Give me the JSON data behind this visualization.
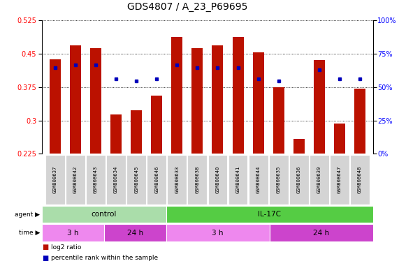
{
  "title": "GDS4807 / A_23_P69695",
  "samples": [
    "GSM808637",
    "GSM808642",
    "GSM808643",
    "GSM808634",
    "GSM808645",
    "GSM808646",
    "GSM808633",
    "GSM808638",
    "GSM808640",
    "GSM808641",
    "GSM808644",
    "GSM808635",
    "GSM808636",
    "GSM808639",
    "GSM808647",
    "GSM808648"
  ],
  "log2_ratio": [
    0.437,
    0.468,
    0.462,
    0.313,
    0.323,
    0.355,
    0.487,
    0.462,
    0.468,
    0.487,
    0.452,
    0.375,
    0.258,
    0.435,
    0.293,
    0.372
  ],
  "percentile": [
    0.418,
    0.425,
    0.425,
    0.393,
    0.388,
    0.393,
    0.425,
    0.418,
    0.418,
    0.418,
    0.393,
    0.388,
    null,
    0.414,
    0.393,
    0.393
  ],
  "ylim_left": [
    0.225,
    0.525
  ],
  "yticks_left": [
    0.225,
    0.3,
    0.375,
    0.45,
    0.525
  ],
  "ylim_right": [
    0,
    100
  ],
  "yticks_right": [
    0,
    25,
    50,
    75,
    100
  ],
  "bar_color": "#bb1100",
  "dot_color": "#0000bb",
  "bar_bottom": 0.225,
  "agent_groups": [
    {
      "label": "control",
      "start": 0,
      "end": 6,
      "color": "#aaddaa"
    },
    {
      "label": "IL-17C",
      "start": 6,
      "end": 16,
      "color": "#55cc44"
    }
  ],
  "time_groups": [
    {
      "label": "3 h",
      "start": 0,
      "end": 3,
      "color": "#ee88ee"
    },
    {
      "label": "24 h",
      "start": 3,
      "end": 6,
      "color": "#cc44cc"
    },
    {
      "label": "3 h",
      "start": 6,
      "end": 11,
      "color": "#ee88ee"
    },
    {
      "label": "24 h",
      "start": 11,
      "end": 16,
      "color": "#cc44cc"
    }
  ],
  "legend_red_label": "log2 ratio",
  "legend_blue_label": "percentile rank within the sample",
  "bar_color_legend": "#bb1100",
  "dot_color_legend": "#0000bb",
  "title_fontsize": 10,
  "ytick_fontsize": 7,
  "bar_width": 0.55
}
